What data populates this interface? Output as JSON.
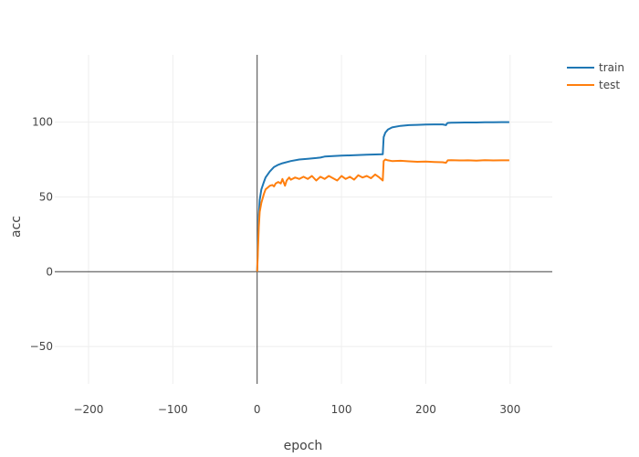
{
  "chart_data": {
    "type": "line",
    "title": "",
    "xlabel": "epoch",
    "ylabel": "acc",
    "xlim": [
      -240,
      350
    ],
    "ylim": [
      -75,
      145
    ],
    "x_ticks": [
      -200,
      -100,
      0,
      100,
      200,
      300
    ],
    "x_tick_labels": [
      "−200",
      "−100",
      "0",
      "100",
      "200",
      "300"
    ],
    "y_ticks": [
      -50,
      0,
      50,
      100
    ],
    "y_tick_labels": [
      "−50",
      "0",
      "50",
      "100"
    ],
    "grid": true,
    "zero_lines": true,
    "legend_position": "top-right",
    "series": [
      {
        "name": "train",
        "color": "#1f77b4",
        "x": [
          0,
          1,
          2,
          3,
          5,
          8,
          10,
          15,
          20,
          25,
          30,
          40,
          50,
          60,
          70,
          75,
          80,
          90,
          100,
          110,
          120,
          130,
          140,
          149,
          150,
          152,
          155,
          160,
          170,
          180,
          190,
          200,
          210,
          220,
          224,
          225,
          226,
          230,
          240,
          250,
          260,
          270,
          280,
          290,
          299
        ],
        "y": [
          0,
          20,
          38,
          48,
          55,
          60,
          63,
          67,
          70,
          71.5,
          72.5,
          74,
          75,
          75.5,
          76,
          76.3,
          77,
          77.3,
          77.6,
          77.8,
          78,
          78.2,
          78.4,
          78.5,
          90,
          93,
          95,
          96.5,
          97.5,
          98,
          98.2,
          98.4,
          98.5,
          98.5,
          98,
          99,
          99.5,
          99.6,
          99.7,
          99.8,
          99.8,
          99.9,
          99.9,
          100,
          100
        ]
      },
      {
        "name": "test",
        "color": "#ff7f0e",
        "x": [
          0,
          1,
          2,
          3,
          5,
          8,
          10,
          12,
          15,
          18,
          20,
          22,
          25,
          28,
          30,
          33,
          35,
          38,
          40,
          45,
          50,
          55,
          60,
          65,
          70,
          75,
          80,
          85,
          90,
          95,
          100,
          105,
          110,
          115,
          120,
          125,
          130,
          135,
          140,
          145,
          149,
          150,
          152,
          155,
          160,
          170,
          180,
          190,
          200,
          210,
          220,
          224,
          226,
          230,
          240,
          250,
          260,
          270,
          280,
          290,
          299
        ],
        "y": [
          0,
          15,
          30,
          40,
          46,
          52,
          55,
          56,
          57.5,
          58,
          57,
          59,
          60,
          59,
          62,
          57.5,
          61,
          63,
          61.5,
          63,
          62,
          63.5,
          62,
          64,
          61,
          63.5,
          62,
          64,
          62.5,
          61,
          64,
          62,
          63.5,
          61.5,
          64.5,
          63,
          64,
          62.5,
          65,
          63,
          61,
          74,
          75,
          74.5,
          74,
          74.2,
          73.8,
          73.5,
          73.6,
          73.4,
          73.2,
          72.8,
          74.5,
          74.6,
          74.4,
          74.5,
          74.3,
          74.6,
          74.4,
          74.5,
          74.5
        ]
      }
    ]
  }
}
